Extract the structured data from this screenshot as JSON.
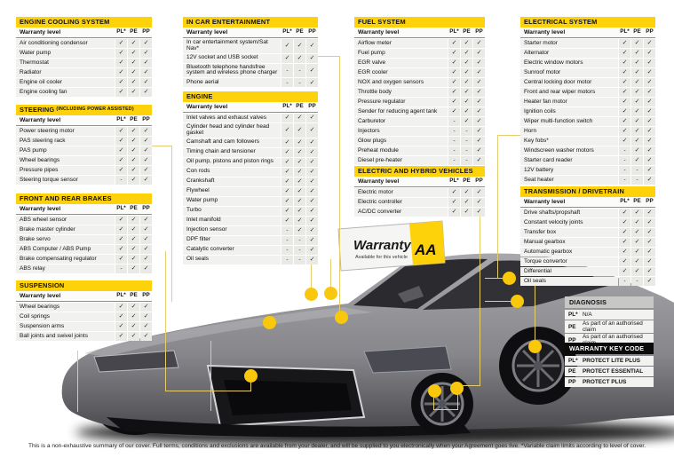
{
  "columns": {
    "label": "Warranty level",
    "codes": [
      "PL*",
      "PE",
      "PP"
    ]
  },
  "tables": [
    {
      "id": "cooling",
      "title": "ENGINE COOLING SYSTEM",
      "title_note": "",
      "rows": [
        {
          "label": "Air conditioning condensor",
          "marks": [
            "✓",
            "✓",
            "✓"
          ]
        },
        {
          "label": "Water pump",
          "marks": [
            "✓",
            "✓",
            "✓"
          ]
        },
        {
          "label": "Thermostat",
          "marks": [
            "✓",
            "✓",
            "✓"
          ]
        },
        {
          "label": "Radiator",
          "marks": [
            "✓",
            "✓",
            "✓"
          ]
        },
        {
          "label": "Engine oil cooler",
          "marks": [
            "✓",
            "✓",
            "✓"
          ]
        },
        {
          "label": "Engine cooling fan",
          "marks": [
            "✓",
            "✓",
            "✓"
          ]
        }
      ]
    },
    {
      "id": "steering",
      "title": "STEERING",
      "title_note": "(INCLUDING POWER ASSISTED)",
      "rows": [
        {
          "label": "Power steering motor",
          "marks": [
            "✓",
            "✓",
            "✓"
          ]
        },
        {
          "label": "PAS steering rack",
          "marks": [
            "✓",
            "✓",
            "✓"
          ]
        },
        {
          "label": "PAS pump",
          "marks": [
            "✓",
            "✓",
            "✓"
          ]
        },
        {
          "label": "Wheel bearings",
          "marks": [
            "✓",
            "✓",
            "✓"
          ]
        },
        {
          "label": "Pressure pipes",
          "marks": [
            "✓",
            "✓",
            "✓"
          ]
        },
        {
          "label": "Steering torque sensor",
          "marks": [
            "-",
            "✓",
            "✓"
          ]
        }
      ]
    },
    {
      "id": "brakes",
      "title": "FRONT AND REAR BRAKES",
      "title_note": "",
      "rows": [
        {
          "label": "ABS wheel sensor",
          "marks": [
            "✓",
            "✓",
            "✓"
          ]
        },
        {
          "label": "Brake master cylinder",
          "marks": [
            "✓",
            "✓",
            "✓"
          ]
        },
        {
          "label": "Brake servo",
          "marks": [
            "✓",
            "✓",
            "✓"
          ]
        },
        {
          "label": "ABS Computer / ABS Pump",
          "marks": [
            "✓",
            "✓",
            "✓"
          ]
        },
        {
          "label": "Brake compensating regulator",
          "marks": [
            "✓",
            "✓",
            "✓"
          ]
        },
        {
          "label": "ABS relay",
          "marks": [
            "-",
            "✓",
            "✓"
          ]
        }
      ]
    },
    {
      "id": "suspension",
      "title": "SUSPENSION",
      "title_note": "",
      "rows": [
        {
          "label": "Wheel bearings",
          "marks": [
            "✓",
            "✓",
            "✓"
          ]
        },
        {
          "label": "Coil springs",
          "marks": [
            "✓",
            "✓",
            "✓"
          ]
        },
        {
          "label": "Suspension arms",
          "marks": [
            "✓",
            "✓",
            "✓"
          ]
        },
        {
          "label": "Ball joints and swivel joints",
          "marks": [
            "✓",
            "✓",
            "✓"
          ]
        }
      ]
    },
    {
      "id": "ice",
      "title": "IN CAR ENTERTAINMENT",
      "title_note": "",
      "rows": [
        {
          "label": "In car entertainment system/Sat Nav*",
          "marks": [
            "✓",
            "✓",
            "✓"
          ]
        },
        {
          "label": "12V socket and USB socket",
          "marks": [
            "✓",
            "✓",
            "✓"
          ]
        },
        {
          "label": "Bluetooth telephone handsfree system and wireless phone charger",
          "marks": [
            "-",
            "-",
            "✓"
          ]
        },
        {
          "label": "Phone aerial",
          "marks": [
            "-",
            "-",
            "✓"
          ]
        }
      ]
    },
    {
      "id": "engine",
      "title": "ENGINE",
      "title_note": "",
      "rows": [
        {
          "label": "Inlet valves and exhaust valves",
          "marks": [
            "✓",
            "✓",
            "✓"
          ]
        },
        {
          "label": "Cylinder head and cylinder head gasket",
          "marks": [
            "✓",
            "✓",
            "✓"
          ]
        },
        {
          "label": "Camshaft and cam followers",
          "marks": [
            "✓",
            "✓",
            "✓"
          ]
        },
        {
          "label": "Timing chain and tensioner",
          "marks": [
            "✓",
            "✓",
            "✓"
          ]
        },
        {
          "label": "Oil pump, pistons and piston rings",
          "marks": [
            "✓",
            "✓",
            "✓"
          ]
        },
        {
          "label": "Con rods",
          "marks": [
            "✓",
            "✓",
            "✓"
          ]
        },
        {
          "label": "Crankshaft",
          "marks": [
            "✓",
            "✓",
            "✓"
          ]
        },
        {
          "label": "Flywheel",
          "marks": [
            "✓",
            "✓",
            "✓"
          ]
        },
        {
          "label": "Water pump",
          "marks": [
            "✓",
            "✓",
            "✓"
          ]
        },
        {
          "label": "Turbo",
          "marks": [
            "✓",
            "✓",
            "✓"
          ]
        },
        {
          "label": "Inlet manifold",
          "marks": [
            "✓",
            "✓",
            "✓"
          ]
        },
        {
          "label": "Injection sensor",
          "marks": [
            "-",
            "✓",
            "✓"
          ]
        },
        {
          "label": "DPF filter",
          "marks": [
            "-",
            "-",
            "✓"
          ]
        },
        {
          "label": "Catalytic converter",
          "marks": [
            "-",
            "-",
            "✓"
          ]
        },
        {
          "label": "Oil seals",
          "marks": [
            "-",
            "-",
            "✓"
          ]
        }
      ]
    },
    {
      "id": "fuel",
      "title": "FUEL SYSTEM",
      "title_note": "",
      "rows": [
        {
          "label": "Airflow meter",
          "marks": [
            "✓",
            "✓",
            "✓"
          ]
        },
        {
          "label": "Fuel pump",
          "marks": [
            "✓",
            "✓",
            "✓"
          ]
        },
        {
          "label": "EGR valve",
          "marks": [
            "✓",
            "✓",
            "✓"
          ]
        },
        {
          "label": "EGR cooler",
          "marks": [
            "✓",
            "✓",
            "✓"
          ]
        },
        {
          "label": "NOX and oxygen sensors",
          "marks": [
            "✓",
            "✓",
            "✓"
          ]
        },
        {
          "label": "Throttle body",
          "marks": [
            "✓",
            "✓",
            "✓"
          ]
        },
        {
          "label": "Pressure regulator",
          "marks": [
            "✓",
            "✓",
            "✓"
          ]
        },
        {
          "label": "Sender for reducing agent tank",
          "marks": [
            "✓",
            "✓",
            "✓"
          ]
        },
        {
          "label": "Carburetor",
          "marks": [
            "-",
            "✓",
            "✓"
          ]
        },
        {
          "label": "Injectors",
          "marks": [
            "-",
            "-",
            "✓"
          ]
        },
        {
          "label": "Glow plugs",
          "marks": [
            "-",
            "-",
            "✓"
          ]
        },
        {
          "label": "Preheat module",
          "marks": [
            "-",
            "-",
            "✓"
          ]
        },
        {
          "label": "Diesel pre-heater",
          "marks": [
            "-",
            "-",
            "✓"
          ]
        }
      ]
    },
    {
      "id": "ehv",
      "title": "ELECTRIC AND HYBRID VEHICLES",
      "title_note": "",
      "rows": [
        {
          "label": "Electric motor",
          "marks": [
            "✓",
            "✓",
            "✓"
          ]
        },
        {
          "label": "Electric controller",
          "marks": [
            "✓",
            "✓",
            "✓"
          ]
        },
        {
          "label": "AC/DC converter",
          "marks": [
            "✓",
            "✓",
            "✓"
          ]
        }
      ]
    },
    {
      "id": "electrical",
      "title": "ELECTRICAL SYSTEM",
      "title_note": "",
      "rows": [
        {
          "label": "Starter motor",
          "marks": [
            "✓",
            "✓",
            "✓"
          ]
        },
        {
          "label": "Alternator",
          "marks": [
            "✓",
            "✓",
            "✓"
          ]
        },
        {
          "label": "Electric window motors",
          "marks": [
            "✓",
            "✓",
            "✓"
          ]
        },
        {
          "label": "Sunroof motor",
          "marks": [
            "✓",
            "✓",
            "✓"
          ]
        },
        {
          "label": "Central locking door motor",
          "marks": [
            "✓",
            "✓",
            "✓"
          ]
        },
        {
          "label": "Front and rear wiper motors",
          "marks": [
            "✓",
            "✓",
            "✓"
          ]
        },
        {
          "label": "Heater fan motor",
          "marks": [
            "✓",
            "✓",
            "✓"
          ]
        },
        {
          "label": "Ignition coils",
          "marks": [
            "✓",
            "✓",
            "✓"
          ]
        },
        {
          "label": "Wiper multi-function switch",
          "marks": [
            "✓",
            "✓",
            "✓"
          ]
        },
        {
          "label": "Horn",
          "marks": [
            "✓",
            "✓",
            "✓"
          ]
        },
        {
          "label": "Key fobs*",
          "marks": [
            "✓",
            "✓",
            "✓"
          ]
        },
        {
          "label": "Windscreen washer motors",
          "marks": [
            "-",
            "✓",
            "✓"
          ]
        },
        {
          "label": "Starter card reader",
          "marks": [
            "-",
            "✓",
            "✓"
          ]
        },
        {
          "label": "12V battery",
          "marks": [
            "-",
            "-",
            "✓"
          ]
        },
        {
          "label": "Seat heater",
          "marks": [
            "-",
            "-",
            "✓"
          ]
        }
      ]
    },
    {
      "id": "transmission",
      "title": "TRANSMISSION / DRIVETRAIN",
      "title_note": "",
      "rows": [
        {
          "label": "Drive shafts/propshaft",
          "marks": [
            "✓",
            "✓",
            "✓"
          ]
        },
        {
          "label": "Constant velocity joints",
          "marks": [
            "✓",
            "✓",
            "✓"
          ]
        },
        {
          "label": "Transfer box",
          "marks": [
            "✓",
            "✓",
            "✓"
          ]
        },
        {
          "label": "Manual gearbox",
          "marks": [
            "✓",
            "✓",
            "✓"
          ]
        },
        {
          "label": "Automatic gearbox",
          "marks": [
            "✓",
            "✓",
            "✓"
          ]
        },
        {
          "label": "Torque convertor",
          "marks": [
            "✓",
            "✓",
            "✓"
          ]
        },
        {
          "label": "Differential",
          "marks": [
            "✓",
            "✓",
            "✓"
          ]
        },
        {
          "label": "Oil seals",
          "marks": [
            "-",
            "-",
            "✓"
          ]
        }
      ]
    }
  ],
  "legends": [
    {
      "id": "diagnosis",
      "title": "DIAGNOSIS",
      "style": "gray",
      "rows": [
        {
          "code": "PL*",
          "text": "N/A"
        },
        {
          "code": "PE",
          "text": "As part of an authorised claim"
        },
        {
          "code": "PP",
          "text": "As part of an authorised claim"
        }
      ]
    },
    {
      "id": "keycode",
      "title": "WARRANTY KEY CODE",
      "style": "black",
      "rows": [
        {
          "code": "PL*",
          "text": "PROTECT LITE PLUS"
        },
        {
          "code": "PE",
          "text": "PROTECT ESSENTIAL"
        },
        {
          "code": "PP",
          "text": "PROTECT PLUS"
        }
      ]
    }
  ],
  "badge": {
    "title": "Warranty",
    "subtitle": "Available for this vehicle",
    "logo": "AA"
  },
  "footer": {
    "text": "This is a non-exhaustive summary of our cover. Full terms, conditions and exclusions are available from your dealer, and will be supplied to you electronically when your Agreement goes live. *Variable claim  limits according to level of cover."
  },
  "colors": {
    "accent_yellow": "#FDD20A",
    "legend_gray": "#C7C7C5",
    "legend_black": "#0B0B0B",
    "row_gray": "#F1F1EF",
    "mark_gray": "#E9E9E6",
    "dot_yellow": "#F9C70B",
    "line_yellow": "#E5CD6F"
  }
}
